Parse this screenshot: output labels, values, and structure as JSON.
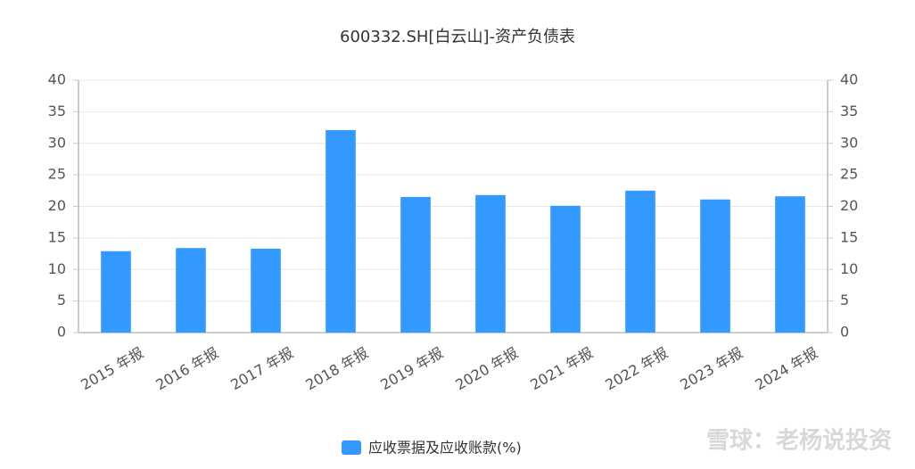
{
  "chart_data": {
    "type": "bar",
    "title": "600332.SH[白云山]-资产负债表",
    "categories": [
      "2015 年报",
      "2016 年报",
      "2017 年报",
      "2018 年报",
      "2019 年报",
      "2020 年报",
      "2021 年报",
      "2022 年报",
      "2023 年报",
      "2024 年报"
    ],
    "series": [
      {
        "name": "应收票据及应收账款(%)",
        "color": "#3399ff",
        "values": [
          12.9,
          13.4,
          13.3,
          32.1,
          21.5,
          21.8,
          20.1,
          22.5,
          21.1,
          21.6
        ]
      }
    ],
    "ylim": [
      0,
      40
    ],
    "yticks": [
      0,
      5,
      10,
      15,
      20,
      25,
      30,
      35,
      40
    ],
    "y2lim": [
      0,
      40
    ],
    "y2ticks": [
      0,
      5,
      10,
      15,
      20,
      25,
      30,
      35,
      40
    ],
    "grid": true,
    "legend": "bottom",
    "watermark": "雪球：老杨说投资"
  }
}
